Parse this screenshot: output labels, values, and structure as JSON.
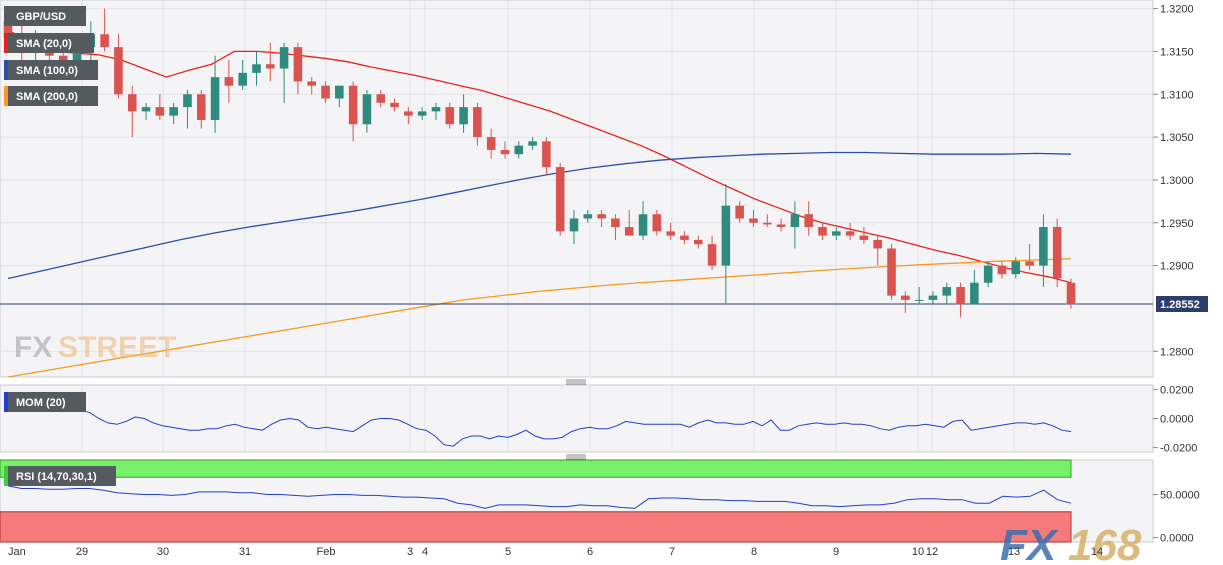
{
  "chart_data": {
    "type": "candlestick",
    "symbol": "GBP/USD",
    "x_ticks": [
      "Jan",
      "29",
      "30",
      "31",
      "Feb",
      "3",
      "4",
      "5",
      "6",
      "7",
      "8",
      "9",
      "10",
      "12",
      "13",
      "14"
    ],
    "last_price_label": "1.28552",
    "last_price": 1.28552,
    "price_axis": {
      "ticks": [
        "1.3200",
        "1.3150",
        "1.3100",
        "1.3050",
        "1.3000",
        "1.2950",
        "1.2900",
        "1.2800"
      ],
      "ylim": [
        1.277,
        1.321
      ]
    },
    "candles": [
      [
        1.3185,
        1.32,
        1.316,
        1.3165
      ],
      [
        1.3165,
        1.318,
        1.314,
        1.315
      ],
      [
        1.315,
        1.3175,
        1.313,
        1.316
      ],
      [
        1.316,
        1.317,
        1.3135,
        1.3145
      ],
      [
        1.3145,
        1.3165,
        1.313,
        1.314
      ],
      [
        1.314,
        1.316,
        1.3125,
        1.3155
      ],
      [
        1.3155,
        1.3185,
        1.314,
        1.317
      ],
      [
        1.317,
        1.32,
        1.315,
        1.3155
      ],
      [
        1.3155,
        1.317,
        1.3095,
        1.31
      ],
      [
        1.31,
        1.311,
        1.305,
        1.308
      ],
      [
        1.308,
        1.309,
        1.307,
        1.3085
      ],
      [
        1.3085,
        1.31,
        1.307,
        1.3075
      ],
      [
        1.3075,
        1.309,
        1.3065,
        1.3085
      ],
      [
        1.3085,
        1.3105,
        1.306,
        1.31
      ],
      [
        1.31,
        1.3105,
        1.306,
        1.307
      ],
      [
        1.307,
        1.3145,
        1.3055,
        1.312
      ],
      [
        1.312,
        1.314,
        1.309,
        1.311
      ],
      [
        1.311,
        1.314,
        1.3105,
        1.3125
      ],
      [
        1.3125,
        1.315,
        1.311,
        1.3135
      ],
      [
        1.3135,
        1.316,
        1.3115,
        1.313
      ],
      [
        1.313,
        1.316,
        1.309,
        1.3155
      ],
      [
        1.3155,
        1.316,
        1.31,
        1.3115
      ],
      [
        1.3115,
        1.312,
        1.31,
        1.311
      ],
      [
        1.311,
        1.3115,
        1.309,
        1.3095
      ],
      [
        1.3095,
        1.311,
        1.3085,
        1.311
      ],
      [
        1.311,
        1.3115,
        1.3045,
        1.3065
      ],
      [
        1.3065,
        1.3105,
        1.3055,
        1.31
      ],
      [
        1.31,
        1.3105,
        1.3085,
        1.309
      ],
      [
        1.309,
        1.3095,
        1.308,
        1.3085
      ],
      [
        1.308,
        1.3085,
        1.3065,
        1.3075
      ],
      [
        1.3075,
        1.3085,
        1.307,
        1.308
      ],
      [
        1.308,
        1.309,
        1.307,
        1.3085
      ],
      [
        1.3085,
        1.309,
        1.306,
        1.3065
      ],
      [
        1.3065,
        1.31,
        1.3055,
        1.3085
      ],
      [
        1.3085,
        1.309,
        1.304,
        1.305
      ],
      [
        1.305,
        1.306,
        1.3025,
        1.3035
      ],
      [
        1.3035,
        1.3045,
        1.3025,
        1.303
      ],
      [
        1.303,
        1.3045,
        1.3025,
        1.304
      ],
      [
        1.304,
        1.305,
        1.3035,
        1.3045
      ],
      [
        1.3045,
        1.305,
        1.3005,
        1.3015
      ],
      [
        1.3015,
        1.302,
        1.2935,
        1.294
      ],
      [
        1.294,
        1.2965,
        1.2925,
        1.2955
      ],
      [
        1.2955,
        1.2965,
        1.295,
        1.296
      ],
      [
        1.296,
        1.2965,
        1.2945,
        1.2955
      ],
      [
        1.2955,
        1.296,
        1.293,
        1.2945
      ],
      [
        1.2945,
        1.2965,
        1.2935,
        1.2935
      ],
      [
        1.2935,
        1.2975,
        1.293,
        1.296
      ],
      [
        1.296,
        1.2965,
        1.2935,
        1.294
      ],
      [
        1.294,
        1.295,
        1.293,
        1.2935
      ],
      [
        1.2935,
        1.294,
        1.2925,
        1.293
      ],
      [
        1.293,
        1.2935,
        1.292,
        1.2925
      ],
      [
        1.2925,
        1.2935,
        1.2895,
        1.29
      ],
      [
        1.29,
        1.2995,
        1.2855,
        1.297
      ],
      [
        1.297,
        1.2975,
        1.295,
        1.2955
      ],
      [
        1.2955,
        1.2965,
        1.2945,
        1.295
      ],
      [
        1.295,
        1.296,
        1.2945,
        1.2948
      ],
      [
        1.2948,
        1.2955,
        1.294,
        1.2945
      ],
      [
        1.2945,
        1.2975,
        1.292,
        1.296
      ],
      [
        1.296,
        1.2975,
        1.2935,
        1.2945
      ],
      [
        1.2945,
        1.295,
        1.293,
        1.2935
      ],
      [
        1.2935,
        1.2945,
        1.293,
        1.294
      ],
      [
        1.294,
        1.295,
        1.293,
        1.2935
      ],
      [
        1.2935,
        1.2945,
        1.2925,
        1.293
      ],
      [
        1.293,
        1.2935,
        1.29,
        1.292
      ],
      [
        1.292,
        1.2925,
        1.286,
        1.2865
      ],
      [
        1.2865,
        1.287,
        1.2845,
        1.286
      ],
      [
        1.286,
        1.2875,
        1.2855,
        1.286
      ],
      [
        1.286,
        1.287,
        1.2855,
        1.2865
      ],
      [
        1.2865,
        1.288,
        1.2855,
        1.2875
      ],
      [
        1.2875,
        1.288,
        1.284,
        1.2855
      ],
      [
        1.2855,
        1.2895,
        1.2855,
        1.288
      ],
      [
        1.288,
        1.2905,
        1.2875,
        1.29
      ],
      [
        1.29,
        1.2905,
        1.2885,
        1.289
      ],
      [
        1.289,
        1.291,
        1.2885,
        1.2905
      ],
      [
        1.2905,
        1.2925,
        1.2895,
        1.29
      ],
      [
        1.29,
        1.296,
        1.2875,
        1.2945
      ],
      [
        1.2945,
        1.2955,
        1.2875,
        1.2885
      ],
      [
        1.288,
        1.2885,
        1.285,
        1.2855
      ]
    ],
    "overlays": [
      {
        "name": "SMA (20,0)",
        "color": "#e8231a",
        "values": [
          1.3175,
          1.316,
          1.315,
          1.3148,
          1.3146,
          1.314,
          1.313,
          1.312,
          1.3128,
          1.3135,
          1.315,
          1.315,
          1.3148,
          1.3145,
          1.3142,
          1.3138,
          1.3132,
          1.3127,
          1.3122,
          1.3116,
          1.311,
          1.3104,
          1.3096,
          1.3088,
          1.308,
          1.307,
          1.306,
          1.305,
          1.304,
          1.3028,
          1.3015,
          1.3002,
          1.299,
          1.2978,
          1.2968,
          1.2958,
          1.295,
          1.2944,
          1.2938,
          1.2932,
          1.2925,
          1.2918,
          1.2912,
          1.2905,
          1.2898,
          1.2892,
          1.2887,
          1.288
        ]
      },
      {
        "name": "SMA (100,0)",
        "color": "#2a4fa8",
        "values": [
          1.2885,
          1.2894,
          1.2903,
          1.2912,
          1.2921,
          1.293,
          1.2938,
          1.2945,
          1.2951,
          1.2957,
          1.2963,
          1.297,
          1.2977,
          1.2985,
          1.2993,
          1.3001,
          1.3008,
          1.3014,
          1.3019,
          1.3023,
          1.3026,
          1.3028,
          1.303,
          1.3031,
          1.3032,
          1.3032,
          1.3031,
          1.303,
          1.303,
          1.303,
          1.3031,
          1.303
        ]
      },
      {
        "name": "SMA (200,0)",
        "color": "#f39c20",
        "values": [
          1.277,
          1.2785,
          1.28,
          1.2815,
          1.283,
          1.2845,
          1.286,
          1.287,
          1.2878,
          1.2884,
          1.289,
          1.2896,
          1.2901,
          1.2905,
          1.2908
        ]
      }
    ],
    "indicators": [
      {
        "name": "MOM (20)",
        "ticks": [
          "0.0200",
          "0.0000",
          "-0.0200"
        ],
        "ylim": [
          -0.023,
          0.023
        ],
        "values": [
          0.017,
          0.013,
          0.011,
          0.011,
          0.008,
          0.006,
          0.012,
          0.013,
          0.006,
          0.004,
          0.0,
          -0.003,
          -0.004,
          -0.002,
          0.001,
          0.0,
          -0.003,
          -0.005,
          -0.006,
          -0.007,
          -0.008,
          -0.008,
          -0.007,
          -0.007,
          -0.005,
          -0.004,
          -0.006,
          -0.007,
          -0.008,
          -0.004,
          -0.001,
          0.0,
          -0.001,
          -0.006,
          -0.007,
          -0.006,
          -0.007,
          -0.008,
          -0.009,
          -0.005,
          -0.001,
          0.0,
          0.0,
          -0.001,
          -0.004,
          -0.007,
          -0.008,
          -0.012,
          -0.018,
          -0.019,
          -0.014,
          -0.012,
          -0.012,
          -0.014,
          -0.012,
          -0.013,
          -0.011,
          -0.008,
          -0.012,
          -0.014,
          -0.014,
          -0.013,
          -0.009,
          -0.007,
          -0.006,
          -0.007,
          -0.007,
          -0.005,
          -0.002,
          -0.003,
          -0.004,
          -0.004,
          -0.004,
          -0.004,
          -0.004,
          -0.006,
          -0.003,
          -0.001,
          -0.003,
          -0.003,
          -0.004,
          -0.004,
          -0.002,
          -0.005,
          -0.001,
          -0.008,
          -0.008,
          -0.005,
          -0.004,
          -0.003,
          -0.004,
          -0.004,
          -0.003,
          -0.004,
          -0.004,
          -0.005,
          -0.007,
          -0.008,
          -0.006,
          -0.005,
          -0.005,
          -0.004,
          -0.005,
          -0.006,
          -0.002,
          -0.001,
          -0.008,
          -0.007,
          -0.006,
          -0.005,
          -0.004,
          -0.003,
          -0.003,
          -0.004,
          -0.003,
          -0.005,
          -0.008,
          -0.009
        ]
      },
      {
        "name": "RSI (14,70,30,1)",
        "ticks": [
          "50.0000",
          "0.0000"
        ],
        "ylim": [
          -5,
          90
        ],
        "overbought": 70,
        "oversold": 30,
        "values": [
          60,
          57,
          57,
          56,
          56,
          57,
          57,
          55,
          52,
          51,
          50,
          50,
          49,
          50,
          53,
          53,
          53,
          52,
          52,
          50,
          50,
          49,
          48,
          49,
          50,
          50,
          49,
          49,
          48,
          47,
          47,
          46,
          45,
          40,
          38,
          34,
          38,
          38,
          38,
          37,
          36,
          36,
          38,
          37,
          37,
          35,
          34,
          45,
          46,
          46,
          45,
          44,
          44,
          43,
          43,
          42,
          42,
          42,
          40,
          37,
          37,
          36,
          37,
          38,
          38,
          40,
          44,
          45,
          45,
          44,
          44,
          40,
          40,
          48,
          47,
          48,
          55,
          44,
          40
        ]
      }
    ]
  }
}
